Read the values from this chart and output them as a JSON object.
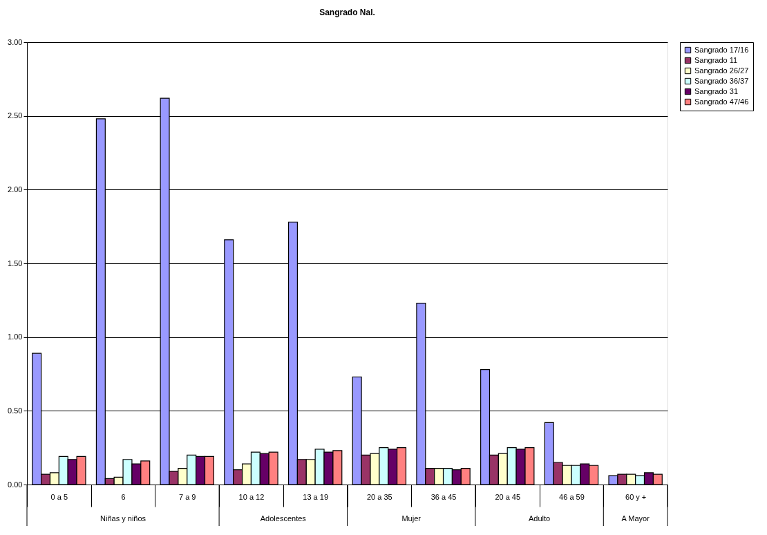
{
  "chart_data": {
    "type": "bar",
    "title": "Sangrado Nal.",
    "categories": [
      "0 a 5",
      "6",
      "7 a 9",
      "10 a 12",
      "13 a 19",
      "20 a 35",
      "36 a 45",
      "20 a 45",
      "46 a 59",
      "60 y +"
    ],
    "series": [
      {
        "name": "Sangrado 17/16",
        "color": "#9999ff",
        "values": [
          0.89,
          2.48,
          2.62,
          1.66,
          1.78,
          0.73,
          1.23,
          0.78,
          0.42,
          0.06
        ]
      },
      {
        "name": "Sangrado 11",
        "color": "#993366",
        "values": [
          0.07,
          0.04,
          0.09,
          0.1,
          0.17,
          0.2,
          0.11,
          0.2,
          0.15,
          0.07
        ]
      },
      {
        "name": "Sangrado 26/27",
        "color": "#ffffcc",
        "values": [
          0.08,
          0.05,
          0.11,
          0.14,
          0.17,
          0.21,
          0.11,
          0.21,
          0.13,
          0.07
        ]
      },
      {
        "name": "Sangrado 36/37",
        "color": "#ccffff",
        "values": [
          0.19,
          0.17,
          0.2,
          0.22,
          0.24,
          0.25,
          0.11,
          0.25,
          0.13,
          0.06
        ]
      },
      {
        "name": "Sangrado 31",
        "color": "#660066",
        "values": [
          0.17,
          0.14,
          0.19,
          0.21,
          0.22,
          0.24,
          0.1,
          0.24,
          0.14,
          0.08
        ]
      },
      {
        "name": "Sangrado 47/46",
        "color": "#ff8080",
        "values": [
          0.19,
          0.16,
          0.19,
          0.22,
          0.23,
          0.25,
          0.11,
          0.25,
          0.13,
          0.07
        ]
      }
    ],
    "ylim": [
      0,
      3
    ],
    "yticks": [
      {
        "value": 0,
        "label": "0.00"
      },
      {
        "value": 0.5,
        "label": "0.50"
      },
      {
        "value": 1,
        "label": "1.00"
      },
      {
        "value": 1.5,
        "label": "1.50"
      },
      {
        "value": 2,
        "label": "2.00"
      },
      {
        "value": 2.5,
        "label": "2.50"
      },
      {
        "value": 3,
        "label": "3.00"
      }
    ],
    "grid": "y",
    "legend": "right",
    "annotations": [
      "Niñas y niños",
      "Adolescentes",
      "Mujer",
      "Adulto",
      "A Mayor"
    ]
  }
}
